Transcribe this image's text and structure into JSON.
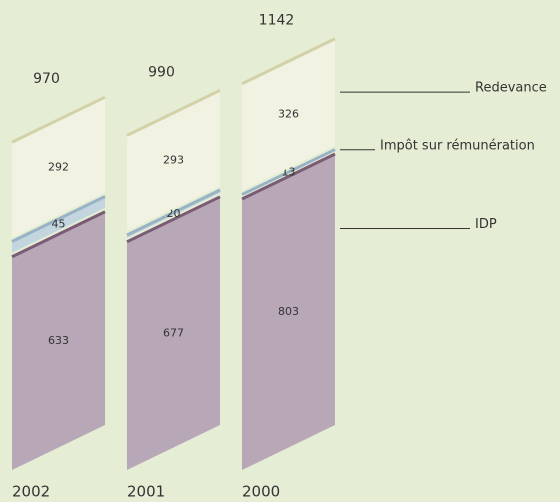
{
  "chart_data": {
    "type": "stacked-bar-3d",
    "categories": [
      "2002",
      "2001",
      "2000"
    ],
    "series": [
      {
        "name": "IDP",
        "color": "#b8a8b7",
        "edge": "#7a5c74",
        "values": [
          633,
          677,
          803
        ]
      },
      {
        "name": "Impôt sur rémunération",
        "color": "#c3d5df",
        "edge": "#98b3c6",
        "values": [
          45,
          20,
          13
        ]
      },
      {
        "name": "Redevance",
        "color": "#f2f2e3",
        "edge": "#d3d1a8",
        "values": [
          292,
          293,
          326
        ]
      }
    ],
    "totals": [
      970,
      990,
      1142
    ]
  }
}
